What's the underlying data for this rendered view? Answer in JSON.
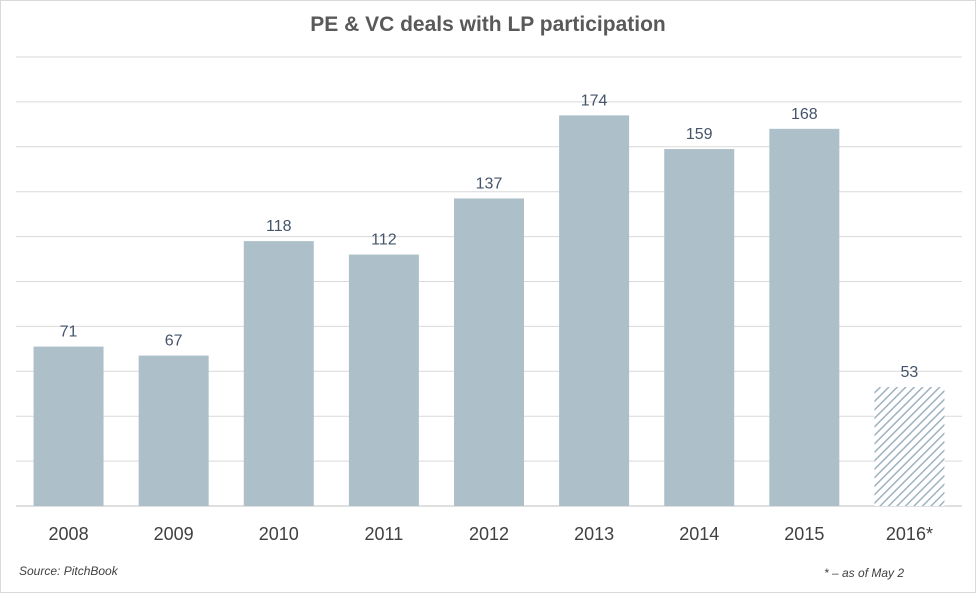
{
  "chart_data": {
    "type": "bar",
    "title": "PE & VC deals with LP participation",
    "categories": [
      "2008",
      "2009",
      "2010",
      "2011",
      "2012",
      "2013",
      "2014",
      "2015",
      "2016*"
    ],
    "values": [
      71,
      67,
      118,
      112,
      137,
      174,
      159,
      168,
      53
    ],
    "data_labels": [
      "71",
      "67",
      "118",
      "112",
      "137",
      "174",
      "159",
      "168",
      "53"
    ],
    "ylim": [
      0,
      200
    ],
    "grid": true,
    "legend": "none",
    "hatched_categories": [
      "2016*"
    ],
    "colors": {
      "bar": "#adc0ca",
      "hatch": "#9fb3bf",
      "grid": "#d9d9d9"
    },
    "source": "Source: PitchBook",
    "footnote": "* – as of May 2"
  }
}
